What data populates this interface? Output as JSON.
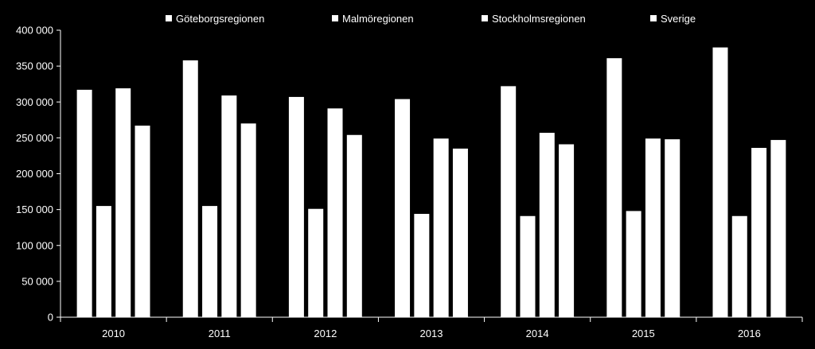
{
  "chart_data": {
    "type": "bar",
    "title": "",
    "xlabel": "",
    "ylabel": "",
    "categories": [
      "2010",
      "2011",
      "2012",
      "2013",
      "2014",
      "2015",
      "2016"
    ],
    "series": [
      {
        "name": "Göteborgsregionen",
        "values": [
          317000,
          358000,
          307000,
          304000,
          322000,
          361000,
          376000
        ]
      },
      {
        "name": "Malmöregionen",
        "values": [
          155000,
          155000,
          151000,
          144000,
          141000,
          148000,
          141000
        ]
      },
      {
        "name": "Stockholmsregionen",
        "values": [
          319000,
          309000,
          291000,
          249000,
          257000,
          249000,
          236000
        ]
      },
      {
        "name": "Sverige",
        "values": [
          267000,
          270000,
          254000,
          235000,
          241000,
          248000,
          247000
        ]
      }
    ],
    "ylim": [
      0,
      400000
    ],
    "yticks": [
      0,
      50000,
      100000,
      150000,
      200000,
      250000,
      300000,
      350000,
      400000
    ],
    "ytick_labels": [
      "0",
      "50 000",
      "100 000",
      "150 000",
      "200 000",
      "250 000",
      "300 000",
      "350 000",
      "400 000"
    ],
    "legend_position": "top",
    "grid": false,
    "colors": {
      "background": "#000000",
      "bars": "#ffffff",
      "axis": "#ffffff",
      "text": "#ffffff"
    }
  }
}
